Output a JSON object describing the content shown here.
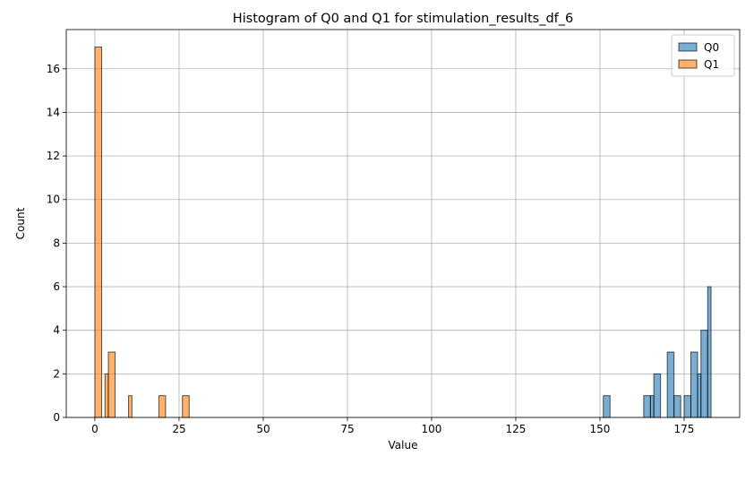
{
  "chart_data": {
    "type": "histogram",
    "title": "Histogram of Q0 and Q1 for stimulation_results_df_6",
    "xlabel": "Value",
    "ylabel": "Count",
    "xlim": [
      -8.5,
      191.5
    ],
    "ylim": [
      0,
      17.8
    ],
    "xticks": [
      0,
      25,
      50,
      75,
      100,
      125,
      150,
      175
    ],
    "yticks": [
      0,
      2,
      4,
      6,
      8,
      10,
      12,
      14,
      16
    ],
    "grid": true,
    "legend_position": "top-right",
    "series": [
      {
        "name": "Q0",
        "color": "#1f77b4",
        "bins": [
          {
            "x0": 151,
            "x1": 153,
            "count": 1
          },
          {
            "x0": 163,
            "x1": 165,
            "count": 1
          },
          {
            "x0": 165,
            "x1": 166,
            "count": 1
          },
          {
            "x0": 166,
            "x1": 168,
            "count": 2
          },
          {
            "x0": 170,
            "x1": 172,
            "count": 3
          },
          {
            "x0": 172,
            "x1": 174,
            "count": 1
          },
          {
            "x0": 175,
            "x1": 177,
            "count": 1
          },
          {
            "x0": 177,
            "x1": 179,
            "count": 3
          },
          {
            "x0": 179,
            "x1": 180,
            "count": 2
          },
          {
            "x0": 180,
            "x1": 182,
            "count": 4
          },
          {
            "x0": 182,
            "x1": 183,
            "count": 6
          }
        ]
      },
      {
        "name": "Q1",
        "color": "#ff7f0e",
        "bins": [
          {
            "x0": 0,
            "x1": 2,
            "count": 17
          },
          {
            "x0": 3,
            "x1": 4,
            "count": 2
          },
          {
            "x0": 4,
            "x1": 6,
            "count": 3
          },
          {
            "x0": 10,
            "x1": 11,
            "count": 1
          },
          {
            "x0": 19,
            "x1": 21,
            "count": 1
          },
          {
            "x0": 26,
            "x1": 28,
            "count": 1
          }
        ]
      }
    ]
  }
}
